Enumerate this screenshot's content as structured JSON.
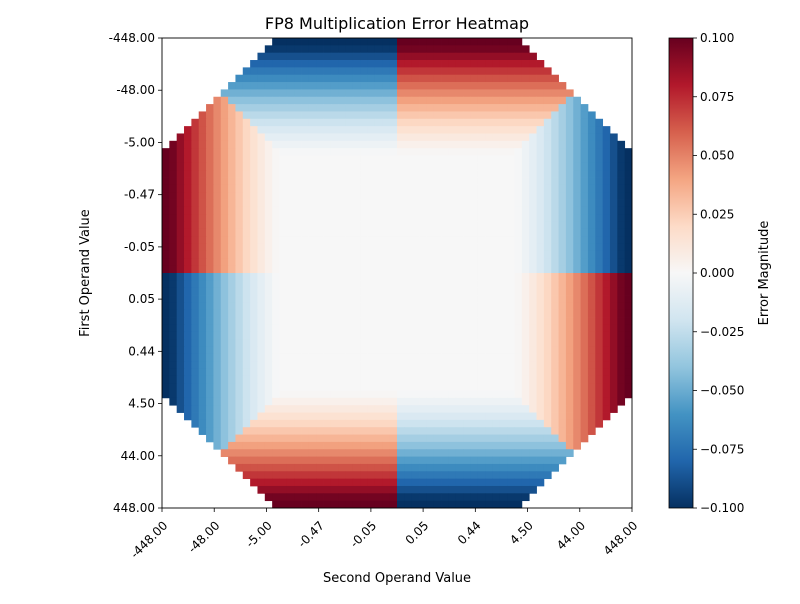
{
  "chart_data": {
    "type": "heatmap",
    "title": "FP8 Multiplication Error Heatmap",
    "xlabel": "Second Operand Value",
    "ylabel": "First Operand Value",
    "x_tick_labels": [
      "-448.00",
      "-48.00",
      "-5.00",
      "-0.47",
      "-0.05",
      "0.05",
      "0.44",
      "4.50",
      "44.00",
      "448.00"
    ],
    "y_tick_labels": [
      "-448.00",
      "-48.00",
      "-5.00",
      "-0.47",
      "-0.05",
      "0.05",
      "0.44",
      "4.50",
      "44.00",
      "448.00"
    ],
    "colorbar": {
      "label": "Error Magnitude",
      "ticks": [
        "0.100",
        "0.075",
        "0.050",
        "0.025",
        "0.000",
        "−0.025",
        "−0.050",
        "−0.075",
        "−0.100"
      ],
      "vmin": -0.1,
      "vmax": 0.1,
      "colormap": "RdBu_r"
    },
    "cell_count_per_axis": 64,
    "nan_regions": "corners outside the octagon (products overflow FP8 range)",
    "sign_pattern": {
      "top_left": "positive",
      "top_right": "negative",
      "bottom_left": "negative",
      "bottom_right": "positive"
    },
    "colors": {
      "max": "#67001f",
      "min": "#053061",
      "zero": "#f7f7f7"
    }
  }
}
